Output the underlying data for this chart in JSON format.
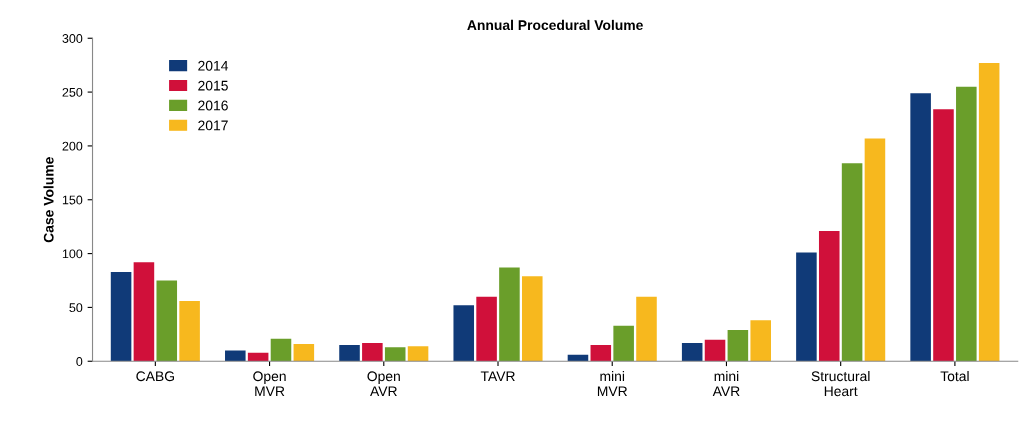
{
  "chart_data": {
    "type": "bar",
    "title": "Annual Procedural Volume",
    "ylabel": "Case Volume",
    "categories": [
      "CABG",
      "Open\nMVR",
      "Open\nAVR",
      "TAVR",
      "mini\nMVR",
      "mini\nAVR",
      "Structural\nHeart",
      "Total"
    ],
    "series": [
      {
        "name": "2014",
        "color": "#103a78",
        "values": [
          83,
          10,
          15,
          52,
          6,
          17,
          101,
          249
        ]
      },
      {
        "name": "2015",
        "color": "#d0103a",
        "values": [
          92,
          8,
          17,
          60,
          15,
          20,
          121,
          234
        ]
      },
      {
        "name": "2016",
        "color": "#6a9e2a",
        "values": [
          75,
          21,
          13,
          87,
          33,
          29,
          184,
          255
        ]
      },
      {
        "name": "2017",
        "color": "#f7b81e",
        "values": [
          56,
          16,
          14,
          79,
          60,
          38,
          207,
          277
        ]
      }
    ],
    "ylim": [
      0,
      300
    ],
    "yticks": [
      0,
      50,
      100,
      150,
      200,
      250,
      300
    ],
    "grid": false,
    "legend": "top left"
  }
}
